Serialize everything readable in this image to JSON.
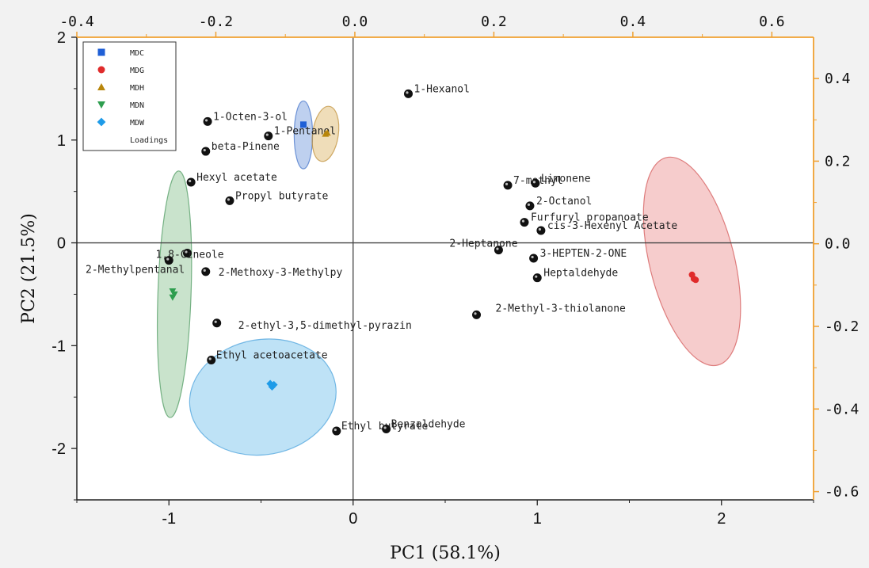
{
  "chart_data": {
    "type": "scatter",
    "xlabel": "PC1 (58.1%)",
    "ylabel": "PC2 (21.5%)",
    "xlim": [
      -1.5,
      2.5
    ],
    "ylim": [
      -2.5,
      2.0
    ],
    "x_ticks": [
      "-1",
      "0",
      "1",
      "2"
    ],
    "x_tick_values": [
      -1,
      0,
      1,
      2
    ],
    "y_ticks": [
      "-2",
      "-1",
      "0",
      "1",
      "2"
    ],
    "y_tick_values": [
      -2,
      -1,
      0,
      1,
      2
    ],
    "top_axis": {
      "lim": [
        -0.4,
        0.66
      ],
      "ticks": [
        "-0.4",
        "-0.2",
        "0.0",
        "0.2",
        "0.4",
        "0.6"
      ],
      "tick_values": [
        -0.4,
        -0.2,
        0.0,
        0.2,
        0.4,
        0.6
      ],
      "color": "#f0a030"
    },
    "right_axis": {
      "lim": [
        -0.62,
        0.5
      ],
      "ticks": [
        "0.4",
        "0.2",
        "0.0",
        "-0.2",
        "-0.4",
        "-0.6"
      ],
      "tick_values": [
        0.4,
        0.2,
        0.0,
        -0.2,
        -0.4,
        -0.6
      ],
      "color": "#f0a030"
    },
    "legend": {
      "position": "top-left",
      "entries": [
        {
          "name": "MDC",
          "marker": "square",
          "color": "#1f5fd6"
        },
        {
          "name": "MDG",
          "marker": "circle",
          "color": "#e02b2b"
        },
        {
          "name": "MDH",
          "marker": "triangle-up",
          "color": "#b8860b"
        },
        {
          "name": "MDN",
          "marker": "triangle-down",
          "color": "#2e9e4f"
        },
        {
          "name": "MDW",
          "marker": "diamond",
          "color": "#1e9be8"
        },
        {
          "name": "Loadings",
          "marker": "none",
          "color": "#000000"
        }
      ]
    },
    "groups": [
      {
        "name": "MDC",
        "color": "#1f5fd6",
        "marker": "square",
        "points": [
          [
            -0.27,
            1.15
          ]
        ],
        "ellipse": {
          "cx": -0.27,
          "cy": 1.05,
          "rx": 0.05,
          "ry": 0.33,
          "angle": 0,
          "fill": "rgba(70,120,210,0.35)",
          "stroke": "rgba(60,110,200,0.7)"
        }
      },
      {
        "name": "MDG",
        "color": "#e02b2b",
        "marker": "circle",
        "points": [
          [
            1.84,
            -0.31
          ],
          [
            1.85,
            -0.35
          ],
          [
            1.86,
            -0.36
          ]
        ],
        "ellipse": {
          "cx": 1.84,
          "cy": -0.18,
          "rx": 0.23,
          "ry": 1.04,
          "angle": -14,
          "fill": "rgba(230,110,110,0.35)",
          "stroke": "rgba(210,80,80,0.7)"
        }
      },
      {
        "name": "MDH",
        "color": "#b8860b",
        "marker": "triangle-up",
        "points": [
          [
            -0.15,
            1.06
          ],
          [
            -0.14,
            1.07
          ]
        ],
        "ellipse": {
          "cx": -0.15,
          "cy": 1.06,
          "rx": 0.07,
          "ry": 0.27,
          "angle": 8,
          "fill": "rgba(215,170,80,0.4)",
          "stroke": "rgba(190,140,50,0.7)"
        }
      },
      {
        "name": "MDN",
        "color": "#2e9e4f",
        "marker": "triangle-down",
        "points": [
          [
            -0.98,
            -0.47
          ],
          [
            -0.97,
            -0.5
          ],
          [
            -0.98,
            -0.53
          ]
        ],
        "ellipse": {
          "cx": -0.97,
          "cy": -0.5,
          "rx": 0.09,
          "ry": 1.2,
          "angle": 2,
          "fill": "rgba(100,175,110,0.35)",
          "stroke": "rgba(70,150,90,0.7)"
        }
      },
      {
        "name": "MDW",
        "color": "#1e9be8",
        "marker": "diamond",
        "points": [
          [
            -0.45,
            -1.37
          ],
          [
            -0.43,
            -1.38
          ],
          [
            -0.44,
            -1.4
          ]
        ],
        "ellipse": {
          "cx": -0.49,
          "cy": -1.5,
          "rx": 0.4,
          "ry": 0.56,
          "angle": -10,
          "fill": "rgba(110,190,235,0.45)",
          "stroke": "rgba(70,160,220,0.7)"
        }
      }
    ],
    "loadings": [
      {
        "label": "1-Hexanol",
        "x": 0.3,
        "y": 1.45
      },
      {
        "label": "1-Octen-3-ol",
        "x": -0.79,
        "y": 1.18
      },
      {
        "label": "1-Pentanol",
        "x": -0.46,
        "y": 1.04
      },
      {
        "label": "beta-Pinene",
        "x": -0.8,
        "y": 0.89
      },
      {
        "label": "Hexyl acetate",
        "x": -0.88,
        "y": 0.59
      },
      {
        "label": "Propyl butyrate",
        "x": -0.67,
        "y": 0.41
      },
      {
        "label": "1,8-Cineole",
        "x": -0.9,
        "y": -0.1
      },
      {
        "label": "2-Methylpentanal",
        "x": -1.0,
        "y": -0.17
      },
      {
        "label": "2-Methoxy-3-Methylpy",
        "x": -0.8,
        "y": -0.28
      },
      {
        "label": "2-ethyl-3,5-dimethyl-pyrazin",
        "x": -0.74,
        "y": -0.78
      },
      {
        "label": "Ethyl acetoacetate",
        "x": -0.77,
        "y": -1.14
      },
      {
        "label": "Ethyl butyrate",
        "x": -0.09,
        "y": -1.83
      },
      {
        "label": "Benzaldehyde",
        "x": 0.18,
        "y": -1.81
      },
      {
        "label": "7-methyl",
        "x": 0.84,
        "y": 0.56
      },
      {
        "label": "Limonene",
        "x": 0.99,
        "y": 0.58
      },
      {
        "label": "2-Octanol",
        "x": 0.96,
        "y": 0.36
      },
      {
        "label": "Furfuryl propanoate",
        "x": 0.93,
        "y": 0.2
      },
      {
        "label": "cis-3-Hexenyl Acetate",
        "x": 1.02,
        "y": 0.12
      },
      {
        "label": "2-Heptanone",
        "x": 0.79,
        "y": -0.07
      },
      {
        "label": "3-HEPTEN-2-ONE",
        "x": 0.98,
        "y": -0.15
      },
      {
        "label": "Heptaldehyde",
        "x": 1.0,
        "y": -0.34
      },
      {
        "label": "2-Methyl-3-thiolanone",
        "x": 0.67,
        "y": -0.7
      }
    ]
  }
}
